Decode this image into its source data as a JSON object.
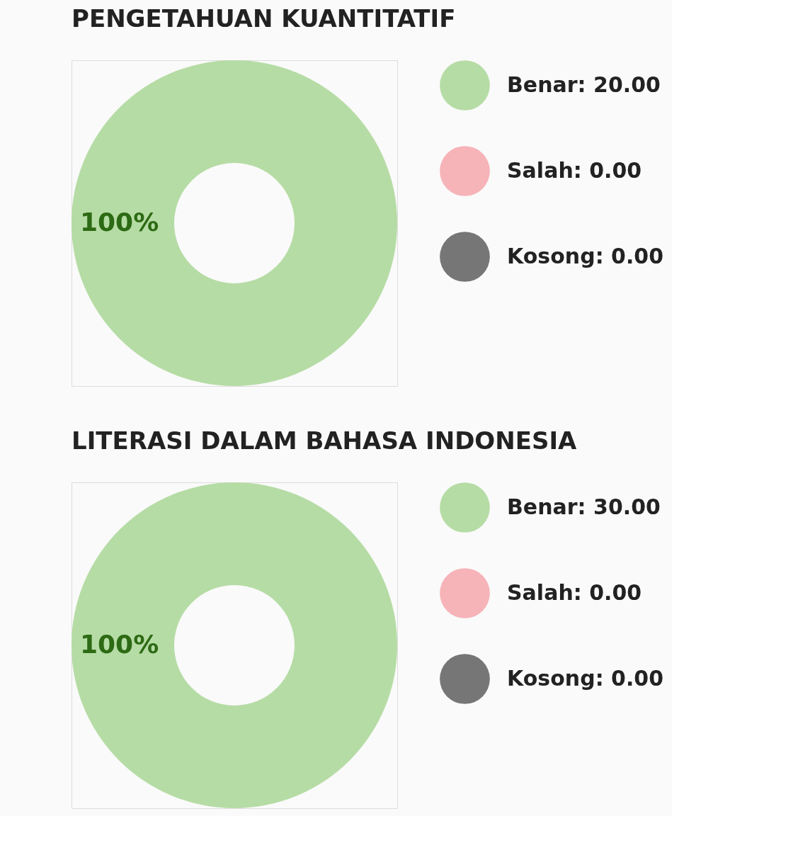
{
  "chart_data": [
    {
      "type": "donut",
      "title": "PENGETAHUAN KUANTITATIF",
      "categories": [
        "Benar",
        "Salah",
        "Kosong"
      ],
      "values": [
        20,
        0,
        0
      ],
      "value_labels": [
        "20.00",
        "0.00",
        "0.00"
      ],
      "colors": [
        "#b6dca5",
        "#f6b3b8",
        "#767676"
      ],
      "annotations": [
        "100%"
      ],
      "legend": "right"
    },
    {
      "type": "donut",
      "title": "LITERASI DALAM BAHASA INDONESIA",
      "categories": [
        "Benar",
        "Salah",
        "Kosong"
      ],
      "values": [
        30,
        0,
        0
      ],
      "value_labels": [
        "30.00",
        "0.00",
        "0.00"
      ],
      "colors": [
        "#b6dca5",
        "#f6b3b8",
        "#767676"
      ],
      "annotations": [
        "100%"
      ],
      "legend": "right"
    }
  ]
}
